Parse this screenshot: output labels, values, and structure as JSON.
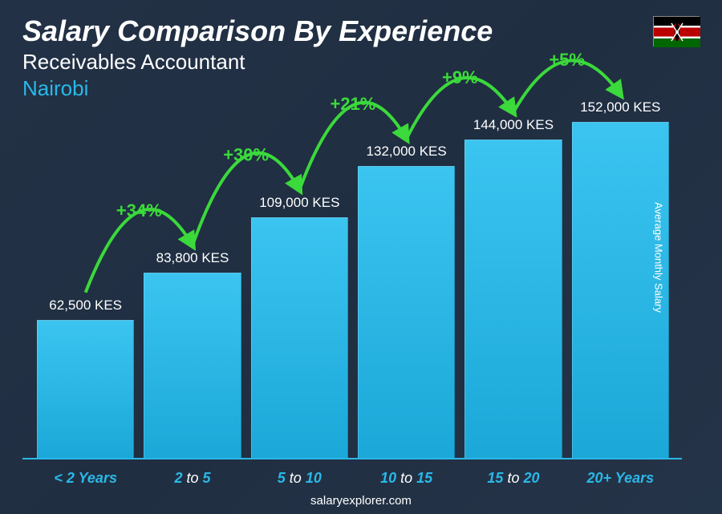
{
  "header": {
    "title": "Salary Comparison By Experience",
    "subtitle": "Receivables Accountant",
    "location": "Nairobi"
  },
  "flag": {
    "country": "Kenya",
    "stripes": [
      {
        "color": "#000000",
        "height": 9
      },
      {
        "color": "#ffffff",
        "height": 2
      },
      {
        "color": "#bb0000",
        "height": 9
      },
      {
        "color": "#ffffff",
        "height": 2
      },
      {
        "color": "#006600",
        "height": 9
      }
    ],
    "shield_colors": {
      "outer": "#bb0000",
      "inner": "#000000",
      "accent": "#ffffff"
    }
  },
  "chart": {
    "type": "bar",
    "y_axis_label": "Average Monthly Salary",
    "currency": "KES",
    "max_value": 160000,
    "bar_color_top": "#3bc4f0",
    "bar_color_bottom": "#1ba8d8",
    "label_color": "#2ab8e8",
    "value_color": "#ffffff",
    "value_fontsize": 17,
    "xlabel_fontsize": 18,
    "baseline_color": "#2ab8e8",
    "background_overlay": "rgba(30,45,65,0.85)",
    "bars": [
      {
        "label_pre": "< 2",
        "label_post": "Years",
        "value": 62500,
        "value_label": "62,500 KES"
      },
      {
        "label_pre": "2",
        "label_mid": "to",
        "label_post": "5",
        "value": 83800,
        "value_label": "83,800 KES"
      },
      {
        "label_pre": "5",
        "label_mid": "to",
        "label_post": "10",
        "value": 109000,
        "value_label": "109,000 KES"
      },
      {
        "label_pre": "10",
        "label_mid": "to",
        "label_post": "15",
        "value": 132000,
        "value_label": "132,000 KES"
      },
      {
        "label_pre": "15",
        "label_mid": "to",
        "label_post": "20",
        "value": 144000,
        "value_label": "144,000 KES"
      },
      {
        "label_pre": "20+",
        "label_post": "Years",
        "value": 152000,
        "value_label": "152,000 KES"
      }
    ],
    "arcs": [
      {
        "from": 0,
        "to": 1,
        "pct": "+34%"
      },
      {
        "from": 1,
        "to": 2,
        "pct": "+30%"
      },
      {
        "from": 2,
        "to": 3,
        "pct": "+21%"
      },
      {
        "from": 3,
        "to": 4,
        "pct": "+9%"
      },
      {
        "from": 4,
        "to": 5,
        "pct": "+5%"
      }
    ],
    "arc_color": "#3bd93b",
    "arc_stroke_width": 4,
    "arc_label_fontsize": 22
  },
  "footer": {
    "text": "salaryexplorer.com"
  }
}
